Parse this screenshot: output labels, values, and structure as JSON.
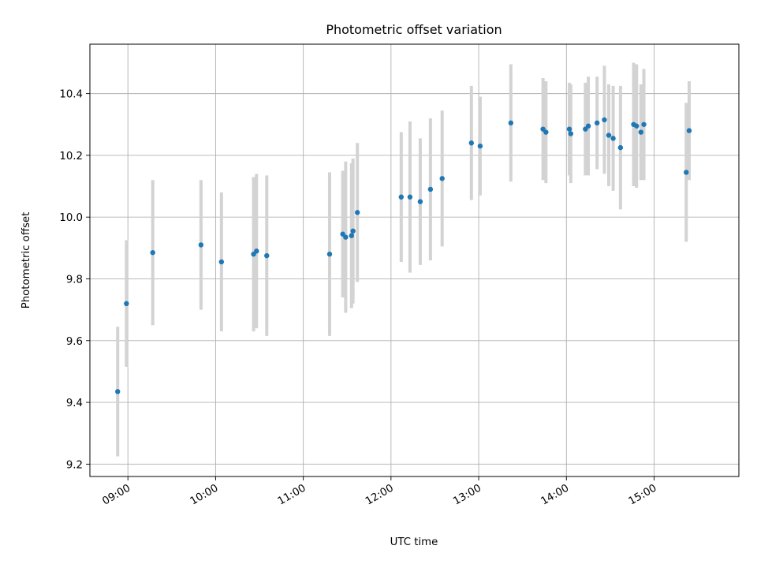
{
  "chart_data": {
    "type": "scatter",
    "title": "Photometric offset variation",
    "xlabel": "UTC time",
    "ylabel": "Photometric offset",
    "x_axis_type": "time",
    "x_ticks": [
      "09:00",
      "10:00",
      "11:00",
      "12:00",
      "13:00",
      "14:00",
      "15:00"
    ],
    "y_ticks": [
      "9.2",
      "9.4",
      "9.6",
      "9.8",
      "10.0",
      "10.2",
      "10.4"
    ],
    "xlim": [
      "08:34",
      "15:58"
    ],
    "ylim": [
      9.16,
      10.56
    ],
    "grid": true,
    "legend": "none",
    "marker_color": "#1f77b4",
    "errorbar_color": "#d3d3d3",
    "series": [
      {
        "points": [
          {
            "x": "08:53",
            "y": 9.435,
            "yerr": 0.21
          },
          {
            "x": "08:59",
            "y": 9.72,
            "yerr": 0.205
          },
          {
            "x": "09:17",
            "y": 9.885,
            "yerr": 0.235
          },
          {
            "x": "09:50",
            "y": 9.91,
            "yerr": 0.21
          },
          {
            "x": "10:04",
            "y": 9.855,
            "yerr": 0.225
          },
          {
            "x": "10:26",
            "y": 9.88,
            "yerr": 0.25
          },
          {
            "x": "10:28",
            "y": 9.89,
            "yerr": 0.25
          },
          {
            "x": "10:35",
            "y": 9.875,
            "yerr": 0.26
          },
          {
            "x": "11:18",
            "y": 9.88,
            "yerr": 0.265
          },
          {
            "x": "11:27",
            "y": 9.945,
            "yerr": 0.205
          },
          {
            "x": "11:29",
            "y": 9.935,
            "yerr": 0.245
          },
          {
            "x": "11:33",
            "y": 9.94,
            "yerr": 0.235
          },
          {
            "x": "11:34",
            "y": 9.955,
            "yerr": 0.235
          },
          {
            "x": "11:37",
            "y": 10.015,
            "yerr": 0.225
          },
          {
            "x": "12:07",
            "y": 10.065,
            "yerr": 0.21
          },
          {
            "x": "12:13",
            "y": 10.065,
            "yerr": 0.245
          },
          {
            "x": "12:20",
            "y": 10.05,
            "yerr": 0.205
          },
          {
            "x": "12:27",
            "y": 10.09,
            "yerr": 0.23
          },
          {
            "x": "12:35",
            "y": 10.125,
            "yerr": 0.22
          },
          {
            "x": "12:55",
            "y": 10.24,
            "yerr": 0.185
          },
          {
            "x": "13:01",
            "y": 10.23,
            "yerr": 0.16
          },
          {
            "x": "13:22",
            "y": 10.305,
            "yerr": 0.19
          },
          {
            "x": "13:44",
            "y": 10.285,
            "yerr": 0.165
          },
          {
            "x": "13:46",
            "y": 10.275,
            "yerr": 0.165
          },
          {
            "x": "14:02",
            "y": 10.285,
            "yerr": 0.15
          },
          {
            "x": "14:03",
            "y": 10.27,
            "yerr": 0.16
          },
          {
            "x": "14:13",
            "y": 10.285,
            "yerr": 0.15
          },
          {
            "x": "14:15",
            "y": 10.295,
            "yerr": 0.16
          },
          {
            "x": "14:21",
            "y": 10.305,
            "yerr": 0.15
          },
          {
            "x": "14:26",
            "y": 10.315,
            "yerr": 0.175
          },
          {
            "x": "14:29",
            "y": 10.265,
            "yerr": 0.165
          },
          {
            "x": "14:32",
            "y": 10.255,
            "yerr": 0.17
          },
          {
            "x": "14:37",
            "y": 10.225,
            "yerr": 0.2
          },
          {
            "x": "14:46",
            "y": 10.3,
            "yerr": 0.2
          },
          {
            "x": "14:48",
            "y": 10.295,
            "yerr": 0.2
          },
          {
            "x": "14:51",
            "y": 10.275,
            "yerr": 0.155
          },
          {
            "x": "14:53",
            "y": 10.3,
            "yerr": 0.18
          },
          {
            "x": "15:22",
            "y": 10.145,
            "yerr": 0.225
          },
          {
            "x": "15:24",
            "y": 10.28,
            "yerr": 0.16
          }
        ]
      }
    ]
  }
}
